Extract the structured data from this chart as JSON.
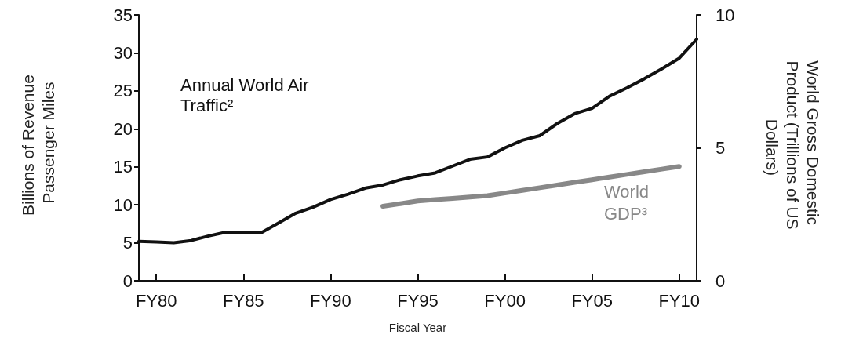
{
  "chart_data": {
    "type": "line",
    "xlabel": "Fiscal Year",
    "ylabel": "Billions of Revenue Passenger Miles",
    "y2label": "World Gross Domestic Product (Trillions of US Dollars)",
    "categories": [
      null,
      "FY80",
      null,
      null,
      null,
      null,
      "FY85",
      null,
      null,
      null,
      null,
      "FY90",
      null,
      null,
      null,
      null,
      "FY95",
      null,
      null,
      null,
      null,
      "FY00",
      null,
      null,
      null,
      null,
      "FY05",
      null,
      null,
      null,
      null,
      "FY10",
      null
    ],
    "ylim": [
      0,
      35
    ],
    "yticks": [
      0,
      5,
      10,
      15,
      20,
      25,
      30,
      35
    ],
    "y2lim": [
      0,
      10
    ],
    "y2ticks": [
      0,
      5,
      10
    ],
    "grid": false,
    "legend": false,
    "marker": "none",
    "line_style": "solid",
    "series": [
      {
        "name": "Annual World Air Traffic²",
        "color": "#111111",
        "values": [
          5.2,
          5.1,
          5.0,
          5.3,
          5.9,
          6.4,
          6.3,
          6.3,
          7.6,
          8.9,
          9.7,
          10.7,
          11.4,
          12.2,
          12.6,
          13.3,
          13.8,
          14.2,
          15.1,
          16.0,
          16.3,
          17.5,
          18.5,
          19.1,
          20.7,
          22.0,
          22.7,
          24.3,
          25.4,
          26.6,
          27.9,
          29.3,
          31.8
        ]
      },
      {
        "name": "World GDP³",
        "color": "#888888",
        "axis": "y2",
        "values": [
          null,
          null,
          null,
          null,
          null,
          null,
          null,
          null,
          null,
          null,
          null,
          null,
          null,
          null,
          2.8,
          2.9,
          3.0,
          3.05,
          3.1,
          3.15,
          3.2,
          3.3,
          3.4,
          3.5,
          3.6,
          3.7,
          3.8,
          3.9,
          4.0,
          4.1,
          4.2,
          4.3,
          null
        ]
      }
    ]
  }
}
